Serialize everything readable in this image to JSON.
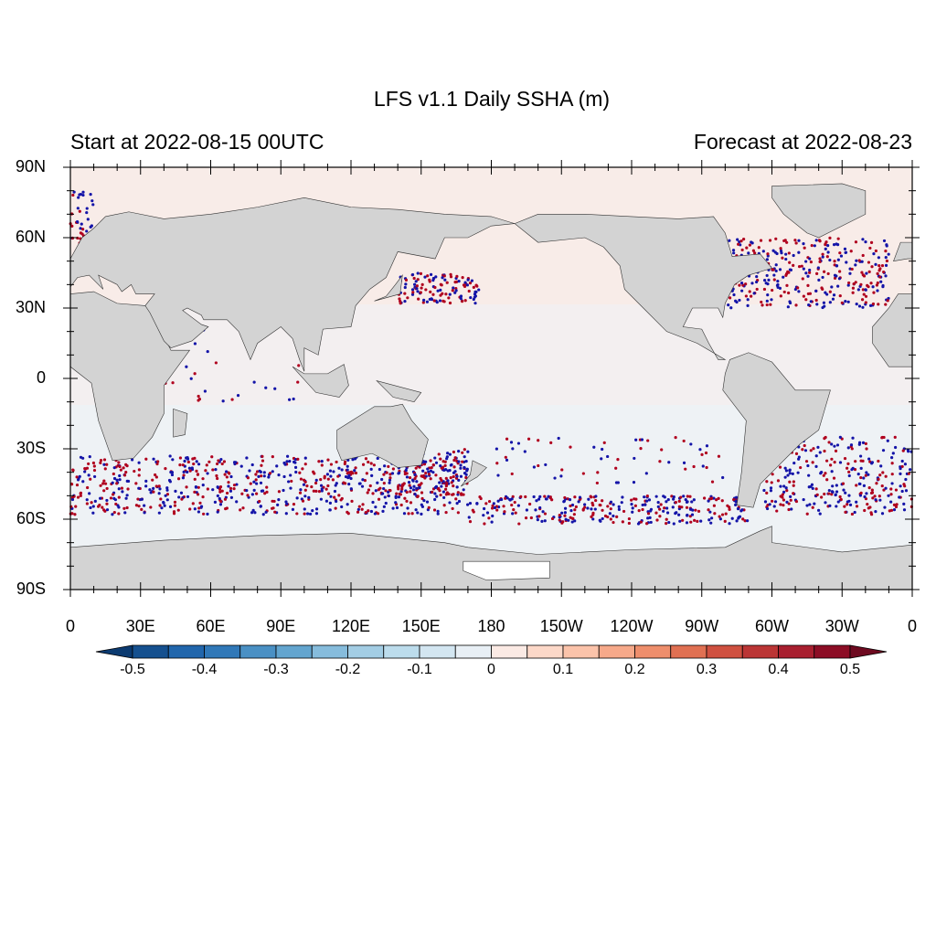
{
  "title": "LFS v1.1 Daily SSHA (m)",
  "left_string": "Start at 2022-08-15 00UTC",
  "right_string": "Forecast at 2022-08-23",
  "lat_ticks": [
    "90N",
    "60N",
    "30N",
    "0",
    "30S",
    "60S",
    "90S"
  ],
  "lon_ticks": [
    "0",
    "30E",
    "60E",
    "90E",
    "120E",
    "150E",
    "180",
    "150W",
    "120W",
    "90W",
    "60W",
    "30W",
    "0"
  ],
  "colorbar": {
    "labels": [
      -0.5,
      -0.4,
      -0.3,
      -0.2,
      -0.1,
      0,
      0.1,
      0.2,
      0.3,
      0.4,
      0.5
    ],
    "colors": [
      "#0b3a70",
      "#15508f",
      "#2166ac",
      "#3078b8",
      "#4a90c4",
      "#63a5cf",
      "#86bcdc",
      "#a3cde4",
      "#bcdcec",
      "#d3e6f1",
      "#e8eff5",
      "#fbeae4",
      "#fcd8c8",
      "#fbc3aa",
      "#f6a98a",
      "#ee8e6c",
      "#e07052",
      "#cf5040",
      "#bb3535",
      "#a81f2f",
      "#8c0d25",
      "#6e0a20"
    ]
  }
}
